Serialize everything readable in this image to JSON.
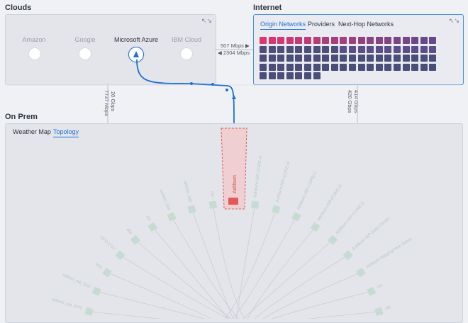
{
  "clouds": {
    "title": "Clouds",
    "providers": [
      {
        "name": "Amazon",
        "icon": "aws-icon",
        "active": false
      },
      {
        "name": "Google",
        "icon": "google-cloud-icon",
        "active": false
      },
      {
        "name": "Microsoft Azure",
        "icon": "azure-icon",
        "active": true
      },
      {
        "name": "IBM Cloud",
        "icon": "ibm-cloud-icon",
        "active": false
      }
    ],
    "expand_icon": "↖↘"
  },
  "internet": {
    "title": "Internet",
    "tabs": [
      {
        "label": "Origin Networks",
        "active": true
      },
      {
        "label": "Providers",
        "active": false
      },
      {
        "label": "Next-Hop Networks",
        "active": false
      }
    ],
    "expand_icon": "↖↘"
  },
  "links": {
    "clouds_internet_out": "507 Mbps ▶",
    "clouds_internet_in": "◀ 2304 Mbps",
    "clouds_onprem_left": "7737 Mbps",
    "clouds_onprem_right": "20 Gbps",
    "internet_onprem_left": "414 Gbps",
    "internet_onprem_right": "420 Gbps"
  },
  "onprem": {
    "title": "On Prem",
    "tabs": [
      {
        "label": "Weather Map",
        "active": false
      },
      {
        "label": "Topology",
        "active": true
      }
    ],
    "selected_node": "Ashburn",
    "nodes_right": [
      "Ashburn-ISP-CORE-A",
      "Ashburn-ISP-CORE-B",
      "Ashburn-ISP-CORE-C",
      "Ashburn-ISP-CORE-D",
      "Ashburn-ISP-CORE-E",
      "Ashburn-ISP-Data Center",
      "Ashburn-Staging New Setup",
      "stn",
      "sbl"
    ],
    "nodes_left": [
      "nyc",
      "atlanta_spp",
      "boston_spp",
      "chi",
      "dfw",
      "SFO-2727",
      "mia",
      "edison_ise_SH1",
      "edison_ise_NYC"
    ]
  },
  "colors": {
    "accent": "#1f6fd1",
    "selected": "#e05a5a",
    "node": "#c6dbd2"
  }
}
